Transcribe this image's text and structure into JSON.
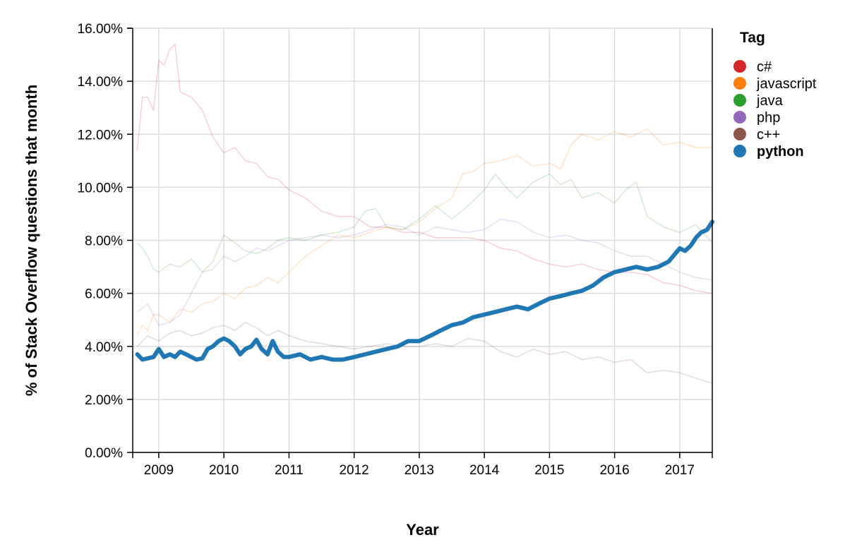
{
  "chart_data": {
    "type": "line",
    "title": "",
    "xlabel": "Year",
    "ylabel": "% of Stack Overflow questions that month",
    "xlim": [
      2008.6,
      2017.5
    ],
    "ylim": [
      0,
      16
    ],
    "x_ticks": [
      2009,
      2010,
      2011,
      2012,
      2013,
      2014,
      2015,
      2016,
      2017
    ],
    "x_tick_labels": [
      "2009",
      "2010",
      "2011",
      "2012",
      "2013",
      "2014",
      "2015",
      "2016",
      "2017"
    ],
    "y_ticks": [
      0,
      2,
      4,
      6,
      8,
      10,
      12,
      14,
      16
    ],
    "y_tick_labels": [
      "0.00%",
      "2.00%",
      "4.00%",
      "6.00%",
      "8.00%",
      "10.00%",
      "12.00%",
      "14.00%",
      "16.00%"
    ],
    "grid": true,
    "legend": {
      "title": "Tag",
      "position": "top-right",
      "highlighted": "python"
    },
    "series": [
      {
        "name": "c#",
        "color": "#d62728",
        "highlight": false,
        "x": [
          2008.67,
          2008.75,
          2008.83,
          2008.92,
          2009.0,
          2009.08,
          2009.17,
          2009.25,
          2009.33,
          2009.5,
          2009.67,
          2009.83,
          2010.0,
          2010.17,
          2010.33,
          2010.5,
          2010.67,
          2010.83,
          2011.0,
          2011.25,
          2011.5,
          2011.75,
          2012.0,
          2012.25,
          2012.5,
          2012.75,
          2013.0,
          2013.25,
          2013.5,
          2013.75,
          2014.0,
          2014.25,
          2014.5,
          2014.75,
          2015.0,
          2015.25,
          2015.5,
          2015.75,
          2016.0,
          2016.25,
          2016.5,
          2016.75,
          2017.0,
          2017.25,
          2017.5
        ],
        "y": [
          11.4,
          13.4,
          13.4,
          12.9,
          14.8,
          14.6,
          15.2,
          15.4,
          13.6,
          13.4,
          12.9,
          11.9,
          11.3,
          11.5,
          11.0,
          10.9,
          10.4,
          10.3,
          9.9,
          9.6,
          9.1,
          8.9,
          8.9,
          8.5,
          8.5,
          8.3,
          8.3,
          8.1,
          8.1,
          8.1,
          8.0,
          7.7,
          7.6,
          7.3,
          7.1,
          7.0,
          7.1,
          6.9,
          6.8,
          6.8,
          6.7,
          6.4,
          6.3,
          6.1,
          6.0
        ]
      },
      {
        "name": "javascript",
        "color": "#ff7f0e",
        "highlight": false,
        "x": [
          2008.67,
          2008.75,
          2008.83,
          2008.92,
          2009.0,
          2009.17,
          2009.33,
          2009.5,
          2009.67,
          2009.83,
          2010.0,
          2010.17,
          2010.33,
          2010.5,
          2010.67,
          2010.83,
          2011.0,
          2011.25,
          2011.5,
          2011.75,
          2012.0,
          2012.25,
          2012.5,
          2012.75,
          2013.0,
          2013.25,
          2013.5,
          2013.67,
          2013.83,
          2014.0,
          2014.25,
          2014.5,
          2014.75,
          2015.0,
          2015.17,
          2015.33,
          2015.5,
          2015.75,
          2016.0,
          2016.25,
          2016.5,
          2016.75,
          2017.0,
          2017.25,
          2017.5
        ],
        "y": [
          4.4,
          4.8,
          4.6,
          5.2,
          5.2,
          4.9,
          5.4,
          5.3,
          5.6,
          5.7,
          6.0,
          5.8,
          6.2,
          6.3,
          6.6,
          6.4,
          6.8,
          7.4,
          7.8,
          8.2,
          8.1,
          8.3,
          8.5,
          8.4,
          8.7,
          9.2,
          9.6,
          10.5,
          10.6,
          10.9,
          11.0,
          11.2,
          10.8,
          10.9,
          10.7,
          11.6,
          12.0,
          11.8,
          12.1,
          11.9,
          12.2,
          11.6,
          11.7,
          11.5,
          11.5
        ]
      },
      {
        "name": "java",
        "color": "#2ca02c",
        "highlight": false,
        "x": [
          2008.67,
          2008.75,
          2008.83,
          2008.92,
          2009.0,
          2009.17,
          2009.33,
          2009.5,
          2009.67,
          2009.83,
          2010.0,
          2010.17,
          2010.33,
          2010.5,
          2010.67,
          2010.83,
          2011.0,
          2011.25,
          2011.5,
          2011.75,
          2012.0,
          2012.17,
          2012.33,
          2012.5,
          2012.75,
          2013.0,
          2013.25,
          2013.5,
          2013.75,
          2014.0,
          2014.17,
          2014.33,
          2014.5,
          2014.75,
          2015.0,
          2015.17,
          2015.33,
          2015.5,
          2015.75,
          2016.0,
          2016.17,
          2016.33,
          2016.5,
          2016.75,
          2017.0,
          2017.25,
          2017.5
        ],
        "y": [
          7.9,
          7.7,
          7.4,
          6.9,
          6.8,
          7.1,
          7.0,
          7.3,
          6.8,
          7.2,
          8.2,
          7.9,
          7.6,
          7.5,
          7.7,
          8.0,
          8.1,
          8.0,
          8.2,
          8.3,
          8.5,
          9.1,
          9.2,
          8.5,
          8.4,
          8.8,
          9.3,
          8.8,
          9.3,
          9.9,
          10.5,
          10.0,
          9.6,
          10.2,
          10.5,
          10.1,
          10.3,
          9.6,
          9.8,
          9.4,
          9.9,
          10.2,
          8.9,
          8.5,
          8.3,
          8.6,
          7.9
        ]
      },
      {
        "name": "php",
        "color": "#9467bd",
        "highlight": false,
        "x": [
          2008.67,
          2008.83,
          2009.0,
          2009.17,
          2009.33,
          2009.5,
          2009.67,
          2009.83,
          2010.0,
          2010.17,
          2010.33,
          2010.5,
          2010.67,
          2010.83,
          2011.0,
          2011.25,
          2011.5,
          2011.75,
          2012.0,
          2012.25,
          2012.5,
          2012.75,
          2013.0,
          2013.25,
          2013.5,
          2013.75,
          2014.0,
          2014.25,
          2014.5,
          2014.75,
          2015.0,
          2015.25,
          2015.5,
          2015.75,
          2016.0,
          2016.25,
          2016.5,
          2016.75,
          2017.0,
          2017.25,
          2017.5
        ],
        "y": [
          5.3,
          5.6,
          4.8,
          4.9,
          5.2,
          6.0,
          6.8,
          6.9,
          7.4,
          7.2,
          7.4,
          7.7,
          7.6,
          7.8,
          8.0,
          8.1,
          8.2,
          8.1,
          8.2,
          8.4,
          8.6,
          8.5,
          8.2,
          8.5,
          8.4,
          8.3,
          8.4,
          8.8,
          8.7,
          8.3,
          8.1,
          8.2,
          8.0,
          7.9,
          7.6,
          7.4,
          7.4,
          7.1,
          6.8,
          6.6,
          6.5
        ]
      },
      {
        "name": "c++",
        "color": "#8c564b",
        "highlight": false,
        "x": [
          2008.67,
          2008.83,
          2009.0,
          2009.17,
          2009.33,
          2009.5,
          2009.67,
          2009.83,
          2010.0,
          2010.17,
          2010.33,
          2010.5,
          2010.67,
          2010.83,
          2011.0,
          2011.25,
          2011.5,
          2011.75,
          2012.0,
          2012.25,
          2012.5,
          2012.75,
          2013.0,
          2013.25,
          2013.5,
          2013.75,
          2014.0,
          2014.25,
          2014.5,
          2014.75,
          2015.0,
          2015.25,
          2015.5,
          2015.75,
          2016.0,
          2016.25,
          2016.5,
          2016.75,
          2017.0,
          2017.25,
          2017.5
        ],
        "y": [
          4.0,
          4.4,
          4.2,
          4.5,
          4.6,
          4.4,
          4.5,
          4.7,
          4.8,
          4.6,
          4.9,
          4.7,
          4.4,
          4.6,
          4.4,
          4.2,
          4.1,
          4.0,
          3.9,
          4.0,
          4.1,
          4.0,
          4.0,
          4.1,
          4.0,
          4.3,
          4.2,
          3.8,
          3.6,
          3.9,
          3.7,
          3.8,
          3.5,
          3.6,
          3.4,
          3.5,
          3.0,
          3.1,
          3.0,
          2.8,
          2.6
        ]
      },
      {
        "name": "python",
        "color": "#1f77b4",
        "highlight": true,
        "x": [
          2008.67,
          2008.75,
          2008.83,
          2008.92,
          2009.0,
          2009.08,
          2009.17,
          2009.25,
          2009.33,
          2009.42,
          2009.5,
          2009.58,
          2009.67,
          2009.75,
          2009.83,
          2009.92,
          2010.0,
          2010.08,
          2010.17,
          2010.25,
          2010.33,
          2010.42,
          2010.5,
          2010.58,
          2010.67,
          2010.75,
          2010.83,
          2010.92,
          2011.0,
          2011.17,
          2011.33,
          2011.5,
          2011.67,
          2011.83,
          2012.0,
          2012.17,
          2012.33,
          2012.5,
          2012.67,
          2012.83,
          2013.0,
          2013.17,
          2013.33,
          2013.5,
          2013.67,
          2013.83,
          2014.0,
          2014.17,
          2014.33,
          2014.5,
          2014.67,
          2014.83,
          2015.0,
          2015.17,
          2015.33,
          2015.5,
          2015.67,
          2015.83,
          2016.0,
          2016.17,
          2016.33,
          2016.5,
          2016.67,
          2016.83,
          2017.0,
          2017.08,
          2017.17,
          2017.25,
          2017.33,
          2017.42,
          2017.5
        ],
        "y": [
          3.7,
          3.5,
          3.55,
          3.6,
          3.9,
          3.6,
          3.7,
          3.6,
          3.8,
          3.7,
          3.6,
          3.5,
          3.55,
          3.9,
          4.0,
          4.2,
          4.3,
          4.2,
          4.0,
          3.7,
          3.9,
          4.0,
          4.25,
          3.9,
          3.7,
          4.2,
          3.8,
          3.6,
          3.6,
          3.7,
          3.5,
          3.6,
          3.5,
          3.5,
          3.6,
          3.7,
          3.8,
          3.9,
          4.0,
          4.2,
          4.2,
          4.4,
          4.6,
          4.8,
          4.9,
          5.1,
          5.2,
          5.3,
          5.4,
          5.5,
          5.4,
          5.6,
          5.8,
          5.9,
          6.0,
          6.1,
          6.3,
          6.6,
          6.8,
          6.9,
          7.0,
          6.9,
          7.0,
          7.2,
          7.7,
          7.6,
          7.8,
          8.1,
          8.3,
          8.4,
          8.7
        ]
      }
    ]
  }
}
